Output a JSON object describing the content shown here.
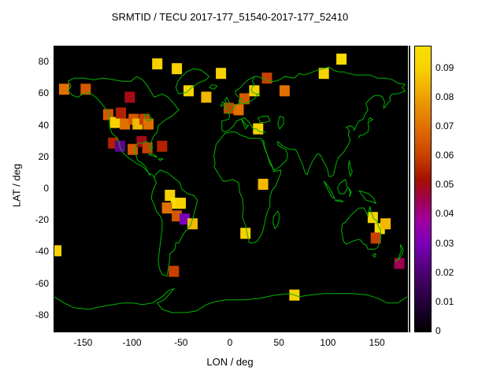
{
  "title": "SRMTID / TECU 2017-177_51540-2017-177_52410",
  "axes": {
    "xlabel": "LON / deg",
    "ylabel": "LAT / deg",
    "xlim": [
      -180,
      180
    ],
    "ylim": [
      -90,
      90
    ],
    "xticks": [
      -150,
      -100,
      -50,
      0,
      50,
      100,
      150
    ],
    "yticks": [
      -80,
      -60,
      -40,
      -20,
      0,
      20,
      40,
      60,
      80
    ]
  },
  "colorbar": {
    "min": 0,
    "max": 0.0975,
    "ticks": [
      {
        "value": 0,
        "label": "0"
      },
      {
        "value": 0.01,
        "label": "0.01"
      },
      {
        "value": 0.02,
        "label": "0.02"
      },
      {
        "value": 0.03,
        "label": "0.03"
      },
      {
        "value": 0.04,
        "label": "0.04"
      },
      {
        "value": 0.05,
        "label": "0.05"
      },
      {
        "value": 0.06,
        "label": "0.06"
      },
      {
        "value": 0.07,
        "label": "0.07"
      },
      {
        "value": 0.08,
        "label": "0.08"
      },
      {
        "value": 0.09,
        "label": "0.09"
      }
    ]
  },
  "chart_data": {
    "type": "heatmap",
    "title": "SRMTID / TECU 2017-177_51540-2017-177_52410",
    "xlabel": "LON / deg",
    "ylabel": "LAT / deg",
    "xlim": [
      -180,
      180
    ],
    "ylim": [
      -90,
      90
    ],
    "units": "TECU",
    "background": "#000000",
    "coastline_color": "#00b400",
    "palette": [
      {
        "value": 0.0,
        "color": "#000000"
      },
      {
        "value": 0.01,
        "color": "#24003a"
      },
      {
        "value": 0.02,
        "color": "#4b0070"
      },
      {
        "value": 0.03,
        "color": "#7a00b8"
      },
      {
        "value": 0.038,
        "color": "#a000a0"
      },
      {
        "value": 0.045,
        "color": "#a00050"
      },
      {
        "value": 0.052,
        "color": "#a51000"
      },
      {
        "value": 0.06,
        "color": "#c84000"
      },
      {
        "value": 0.07,
        "color": "#e07000"
      },
      {
        "value": 0.08,
        "color": "#eda000"
      },
      {
        "value": 0.09,
        "color": "#f8d200"
      },
      {
        "value": 0.0975,
        "color": "#f8e000"
      }
    ],
    "cells": [
      {
        "lon": -170,
        "lat": 63,
        "value": 0.07
      },
      {
        "lon": -148,
        "lat": 63,
        "value": 0.065
      },
      {
        "lon": -125,
        "lat": 47,
        "value": 0.065
      },
      {
        "lon": -118,
        "lat": 42,
        "value": 0.09
      },
      {
        "lon": -112,
        "lat": 48,
        "value": 0.055
      },
      {
        "lon": -108,
        "lat": 41,
        "value": 0.07
      },
      {
        "lon": -103,
        "lat": 58,
        "value": 0.05
      },
      {
        "lon": -99,
        "lat": 44,
        "value": 0.065
      },
      {
        "lon": -95,
        "lat": 41,
        "value": 0.085
      },
      {
        "lon": -88,
        "lat": 44,
        "value": 0.06
      },
      {
        "lon": -84,
        "lat": 41,
        "value": 0.07
      },
      {
        "lon": -120,
        "lat": 29,
        "value": 0.055
      },
      {
        "lon": -113,
        "lat": 27,
        "value": 0.025
      },
      {
        "lon": -100,
        "lat": 25,
        "value": 0.065
      },
      {
        "lon": -91,
        "lat": 30,
        "value": 0.05
      },
      {
        "lon": -85,
        "lat": 26,
        "value": 0.06
      },
      {
        "lon": -70,
        "lat": 27,
        "value": 0.055
      },
      {
        "lon": -75,
        "lat": 79,
        "value": 0.09
      },
      {
        "lon": -55,
        "lat": 76,
        "value": 0.09
      },
      {
        "lon": -43,
        "lat": 62,
        "value": 0.09
      },
      {
        "lon": -25,
        "lat": 58,
        "value": 0.085
      },
      {
        "lon": -10,
        "lat": 73,
        "value": 0.09
      },
      {
        "lon": -2,
        "lat": 51,
        "value": 0.06
      },
      {
        "lon": 8,
        "lat": 50,
        "value": 0.07
      },
      {
        "lon": 14,
        "lat": 57,
        "value": 0.065
      },
      {
        "lon": 24,
        "lat": 62,
        "value": 0.09
      },
      {
        "lon": 37,
        "lat": 70,
        "value": 0.06
      },
      {
        "lon": 28,
        "lat": 38,
        "value": 0.09
      },
      {
        "lon": 55,
        "lat": 62,
        "value": 0.07
      },
      {
        "lon": 95,
        "lat": 73,
        "value": 0.09
      },
      {
        "lon": 113,
        "lat": 82,
        "value": 0.095
      },
      {
        "lon": 33,
        "lat": 3,
        "value": 0.085
      },
      {
        "lon": 15,
        "lat": -28,
        "value": 0.09
      },
      {
        "lon": -62,
        "lat": -4,
        "value": 0.09
      },
      {
        "lon": -56,
        "lat": -9,
        "value": 0.098
      },
      {
        "lon": -65,
        "lat": -12,
        "value": 0.07
      },
      {
        "lon": -51,
        "lat": -9,
        "value": 0.09
      },
      {
        "lon": -55,
        "lat": -17,
        "value": 0.065
      },
      {
        "lon": -47,
        "lat": -19,
        "value": 0.03
      },
      {
        "lon": -39,
        "lat": -22,
        "value": 0.085
      },
      {
        "lon": -58,
        "lat": -52,
        "value": 0.06
      },
      {
        "lon": -178,
        "lat": -39,
        "value": 0.09
      },
      {
        "lon": 65,
        "lat": -67,
        "value": 0.09
      },
      {
        "lon": 145,
        "lat": -18,
        "value": 0.09
      },
      {
        "lon": 152,
        "lat": -25,
        "value": 0.095
      },
      {
        "lon": 148,
        "lat": -31,
        "value": 0.06
      },
      {
        "lon": 158,
        "lat": -22,
        "value": 0.085
      },
      {
        "lon": 172,
        "lat": -47,
        "value": 0.045
      }
    ]
  }
}
